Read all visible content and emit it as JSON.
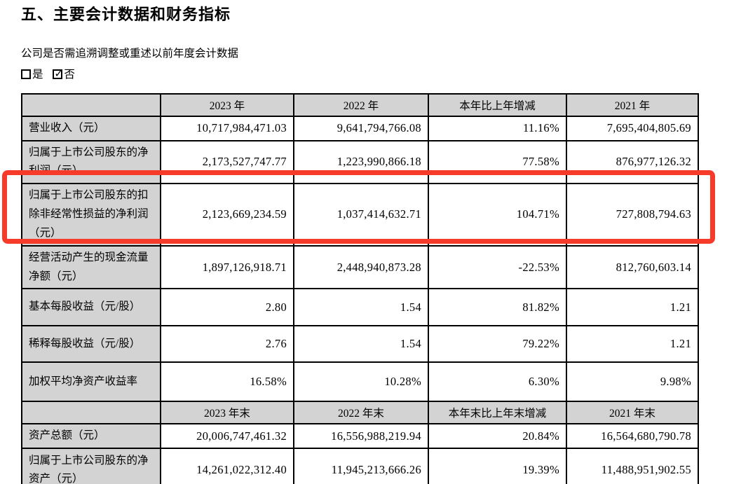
{
  "page": {
    "title": "五、主要会计数据和财务指标",
    "restatement": {
      "question": "公司是否需追溯调整或重述以前年度会计数据",
      "yes_label": "是",
      "no_label": "否",
      "checked_option": "no"
    }
  },
  "table": {
    "sections": [
      {
        "header": [
          "",
          "2023 年",
          "2022 年",
          "本年比上年增减",
          "2021 年"
        ],
        "rows": [
          {
            "label": "营业收入（元）",
            "values": [
              "10,717,984,471.03",
              "9,641,794,766.08",
              "11.16%",
              "7,695,404,805.69"
            ]
          },
          {
            "label": "归属于上市公司股东的净利润（元）",
            "values": [
              "2,173,527,747.77",
              "1,223,990,866.18",
              "77.58%",
              "876,977,126.32"
            ]
          },
          {
            "label": "归属于上市公司股东的扣除非经常性损益的净利润（元）",
            "values": [
              "2,123,669,234.59",
              "1,037,414,632.71",
              "104.71%",
              "727,808,794.63"
            ]
          },
          {
            "label": "经营活动产生的现金流量净额（元）",
            "values": [
              "1,897,126,918.71",
              "2,448,940,873.28",
              "-22.53%",
              "812,760,603.14"
            ]
          },
          {
            "label": "基本每股收益（元/股）",
            "values": [
              "2.80",
              "1.54",
              "81.82%",
              "1.21"
            ]
          },
          {
            "label": "稀释每股收益（元/股）",
            "values": [
              "2.76",
              "1.54",
              "79.22%",
              "1.21"
            ]
          },
          {
            "label": "加权平均净资产收益率",
            "values": [
              "16.58%",
              "10.28%",
              "6.30%",
              "9.98%"
            ]
          }
        ]
      },
      {
        "header": [
          "",
          "2023 年末",
          "2022 年末",
          "本年末比上年末增减",
          "2021 年末"
        ],
        "rows": [
          {
            "label": "资产总额（元）",
            "values": [
              "20,006,747,461.32",
              "16,556,988,219.94",
              "20.84%",
              "16,564,680,790.78"
            ]
          },
          {
            "label": "归属于上市公司股东的净资产（元）",
            "values": [
              "14,261,022,312.40",
              "11,945,213,666.26",
              "19.39%",
              "11,488,951,902.55"
            ]
          }
        ]
      }
    ]
  },
  "annotation": {
    "type": "highlight-box",
    "color": "#f73b2b",
    "highlighted_row_label": "归属于上市公司股东的扣除非经常性损益的净利润（元）"
  },
  "colors": {
    "header_bg": "#d3d3d3",
    "border": "#000000",
    "text": "#000000",
    "background": "#ffffff"
  }
}
